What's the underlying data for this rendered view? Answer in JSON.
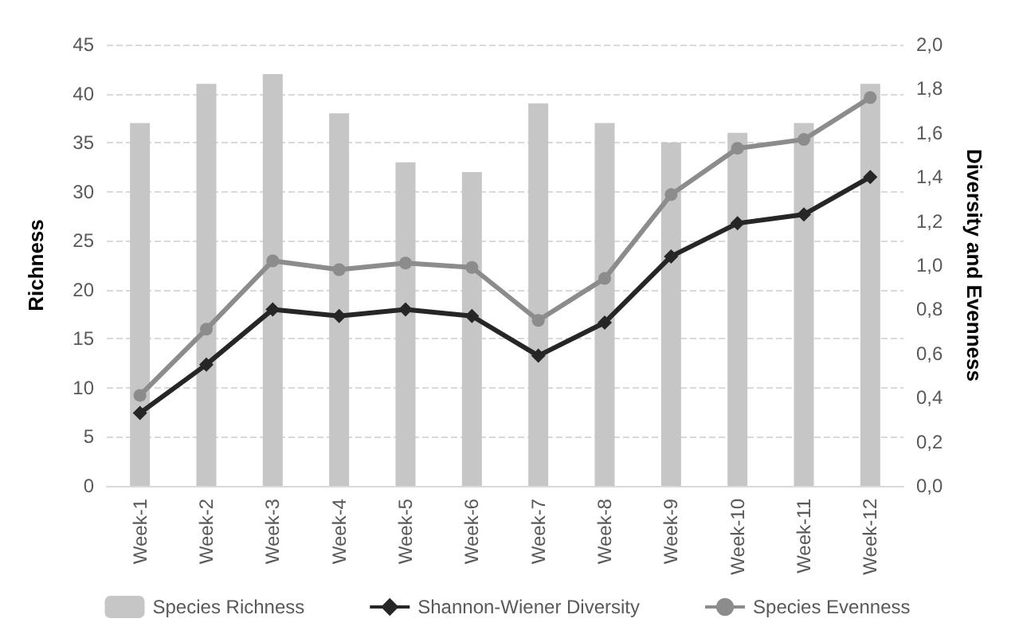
{
  "chart_data": {
    "type": "bar",
    "ylabel": "Richness",
    "y2label": "Diversity and Evenness",
    "categories": [
      "Week-1",
      "Week-2",
      "Week-3",
      "Week-4",
      "Week-5",
      "Week-6",
      "Week-7",
      "Week-8",
      "Week-9",
      "Week-10",
      "Week-11",
      "Week-12"
    ],
    "series": [
      {
        "name": "Species Richness",
        "color": "#c6c6c7",
        "values": [
          37,
          41,
          42,
          38,
          33,
          32,
          39,
          37,
          35,
          36,
          37,
          41
        ]
      },
      {
        "name": "Shannon-Wiener Diversity",
        "type": "line",
        "axis": "y2",
        "marker": "diamond",
        "color": "#262626",
        "values": [
          0.33,
          0.55,
          0.8,
          0.77,
          0.8,
          0.77,
          0.59,
          0.74,
          1.04,
          1.19,
          1.23,
          1.4
        ]
      },
      {
        "name": "Species Evenness",
        "type": "line",
        "axis": "y2",
        "marker": "circle",
        "color": "#8c8c8c",
        "values": [
          0.41,
          0.71,
          1.02,
          0.98,
          1.01,
          0.99,
          0.75,
          0.94,
          1.32,
          1.53,
          1.57,
          1.76
        ]
      }
    ],
    "ylim": [
      0,
      45
    ],
    "yticks": [
      0,
      5,
      10,
      15,
      20,
      25,
      30,
      35,
      40,
      45
    ],
    "y2lim": [
      0,
      2
    ],
    "y2ticks": [
      {
        "value": 0,
        "label": "0,0"
      },
      {
        "value": 0.2,
        "label": "0,2"
      },
      {
        "value": 0.4,
        "label": "0,4"
      },
      {
        "value": 0.6,
        "label": "0,6"
      },
      {
        "value": 0.8,
        "label": "0,8"
      },
      {
        "value": 1,
        "label": "1,0"
      },
      {
        "value": 1.2,
        "label": "1,2"
      },
      {
        "value": 1.4,
        "label": "1,4"
      },
      {
        "value": 1.6,
        "label": "1,6"
      },
      {
        "value": 1.8,
        "label": "1,8"
      },
      {
        "value": 2,
        "label": "2,0"
      }
    ],
    "grid": "y",
    "legend": "bottom"
  }
}
